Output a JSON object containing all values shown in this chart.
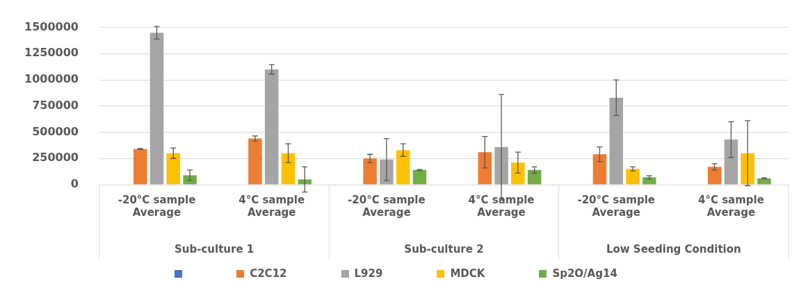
{
  "chart_data": {
    "type": "bar",
    "categories": [
      "-20°C sample Average",
      "4°C sample Average",
      "-20°C sample Average",
      "4°C sample Average",
      "-20°C sample Average",
      "4°C sample Average"
    ],
    "annotations": [
      "Sub-culture 1",
      "Sub-culture 2",
      "Low Seeding Condition"
    ],
    "series": [
      {
        "color": "#4472c4",
        "values": [
          null,
          null,
          null,
          null,
          null,
          null
        ]
      },
      {
        "name": "C2C12",
        "color": "#ed7d31",
        "values": [
          340000,
          440000,
          250000,
          310000,
          290000,
          170000
        ],
        "errors": [
          5000,
          25000,
          40000,
          150000,
          70000,
          30000
        ]
      },
      {
        "name": "L929",
        "color": "#a5a5a5",
        "values": [
          1450000,
          1100000,
          240000,
          360000,
          830000,
          430000
        ],
        "errors": [
          60000,
          45000,
          200000,
          500000,
          170000,
          170000
        ]
      },
      {
        "name": "MDCK",
        "color": "#ffc000",
        "values": [
          300000,
          300000,
          330000,
          210000,
          150000,
          300000
        ],
        "errors": [
          50000,
          90000,
          60000,
          100000,
          20000,
          310000
        ]
      },
      {
        "name": "Sp2O/Ag14",
        "color": "#70ad47",
        "values": [
          90000,
          50000,
          140000,
          140000,
          70000,
          60000
        ],
        "errors": [
          50000,
          120000,
          5000,
          30000,
          15000,
          5000
        ]
      }
    ],
    "ylim": [
      0,
      1500000
    ],
    "yticks": [
      0,
      250000,
      500000,
      750000,
      1000000,
      1250000,
      1500000
    ],
    "grid": "y",
    "legend": "bottom"
  }
}
